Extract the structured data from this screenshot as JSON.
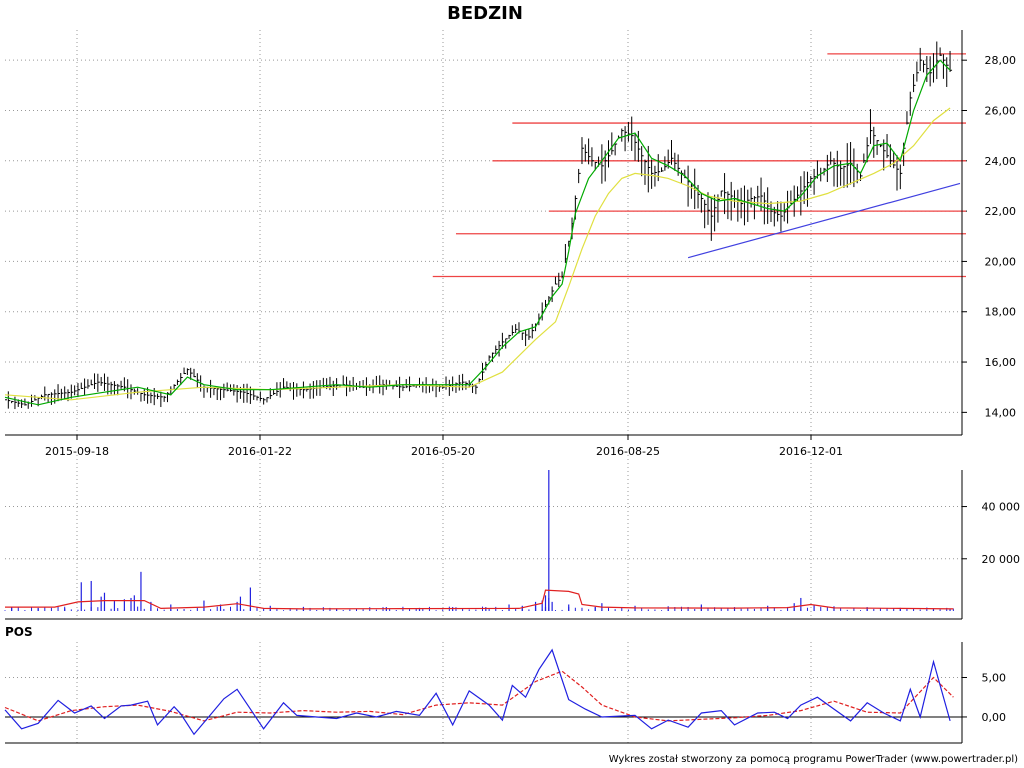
{
  "chart_data": [
    {
      "type": "ohlc",
      "title": "BEDZIN",
      "x_ticks": [
        "2015-09-18",
        "2016-01-22",
        "2016-05-20",
        "2016-08-25",
        "2016-12-01"
      ],
      "y_ticks": [
        "14,00",
        "16,00",
        "18,00",
        "20,00",
        "22,00",
        "24,00",
        "26,00",
        "28,00"
      ],
      "ylim": [
        13.1,
        29.2
      ],
      "grid": true,
      "series": [
        {
          "color": "#00aa00",
          "kind": "short moving average"
        },
        {
          "color": "#e0e040",
          "kind": "long moving average"
        }
      ],
      "price_path": [
        [
          0,
          14.5
        ],
        [
          6,
          14.3
        ],
        [
          12,
          14.7
        ],
        [
          20,
          14.8
        ],
        [
          28,
          15.2
        ],
        [
          36,
          15.0
        ],
        [
          42,
          14.7
        ],
        [
          48,
          14.6
        ],
        [
          55,
          15.7
        ],
        [
          60,
          15.0
        ],
        [
          66,
          14.9
        ],
        [
          72,
          14.8
        ],
        [
          78,
          14.5
        ],
        [
          84,
          15.0
        ],
        [
          90,
          14.9
        ],
        [
          96,
          15.0
        ],
        [
          102,
          15.1
        ],
        [
          108,
          15.0
        ],
        [
          114,
          15.1
        ],
        [
          120,
          15.0
        ],
        [
          126,
          15.1
        ],
        [
          132,
          15.0
        ],
        [
          138,
          15.2
        ],
        [
          142,
          15.0
        ],
        [
          146,
          16.2
        ],
        [
          150,
          16.8
        ],
        [
          154,
          17.3
        ],
        [
          158,
          17.0
        ],
        [
          162,
          18.0
        ],
        [
          166,
          19.1
        ],
        [
          168,
          19.4
        ],
        [
          171,
          21.5
        ],
        [
          174,
          24.5
        ],
        [
          177,
          24.0
        ],
        [
          180,
          23.8
        ],
        [
          183,
          24.4
        ],
        [
          186,
          25.2
        ],
        [
          189,
          25.0
        ],
        [
          192,
          24.2
        ],
        [
          195,
          23.5
        ],
        [
          198,
          23.6
        ],
        [
          201,
          24.1
        ],
        [
          204,
          23.5
        ],
        [
          207,
          23.0
        ],
        [
          210,
          22.5
        ],
        [
          213,
          21.8
        ],
        [
          216,
          22.8
        ],
        [
          219,
          22.6
        ],
        [
          222,
          22.3
        ],
        [
          225,
          22.5
        ],
        [
          228,
          22.6
        ],
        [
          231,
          22.0
        ],
        [
          234,
          21.8
        ],
        [
          237,
          22.3
        ],
        [
          240,
          22.8
        ],
        [
          243,
          23.3
        ],
        [
          246,
          23.5
        ],
        [
          249,
          24.0
        ],
        [
          252,
          23.7
        ],
        [
          255,
          23.9
        ],
        [
          258,
          23.4
        ],
        [
          261,
          25.2
        ],
        [
          264,
          24.6
        ],
        [
          267,
          24.0
        ],
        [
          270,
          23.5
        ],
        [
          273,
          26.5
        ],
        [
          276,
          28.0
        ],
        [
          279,
          27.5
        ],
        [
          282,
          28.2
        ],
        [
          285,
          27.6
        ]
      ],
      "short_ma": [
        [
          0,
          14.6
        ],
        [
          10,
          14.3
        ],
        [
          20,
          14.6
        ],
        [
          30,
          14.8
        ],
        [
          40,
          15.0
        ],
        [
          50,
          14.7
        ],
        [
          55,
          15.4
        ],
        [
          60,
          15.1
        ],
        [
          70,
          14.9
        ],
        [
          80,
          14.9
        ],
        [
          90,
          15.0
        ],
        [
          100,
          15.1
        ],
        [
          110,
          15.0
        ],
        [
          120,
          15.1
        ],
        [
          130,
          15.1
        ],
        [
          140,
          15.1
        ],
        [
          145,
          15.8
        ],
        [
          150,
          16.6
        ],
        [
          155,
          17.2
        ],
        [
          160,
          17.4
        ],
        [
          165,
          18.6
        ],
        [
          168,
          19.1
        ],
        [
          170,
          20.4
        ],
        [
          172,
          21.9
        ],
        [
          176,
          23.3
        ],
        [
          180,
          24.0
        ],
        [
          185,
          24.9
        ],
        [
          190,
          25.1
        ],
        [
          195,
          24.1
        ],
        [
          200,
          23.8
        ],
        [
          205,
          23.4
        ],
        [
          210,
          22.7
        ],
        [
          215,
          22.4
        ],
        [
          220,
          22.5
        ],
        [
          225,
          22.3
        ],
        [
          230,
          22.1
        ],
        [
          235,
          22.0
        ],
        [
          240,
          22.6
        ],
        [
          245,
          23.4
        ],
        [
          250,
          23.8
        ],
        [
          255,
          23.9
        ],
        [
          258,
          23.5
        ],
        [
          262,
          24.6
        ],
        [
          266,
          24.7
        ],
        [
          270,
          24.0
        ],
        [
          274,
          26.0
        ],
        [
          278,
          27.4
        ],
        [
          282,
          28.0
        ],
        [
          285,
          27.6
        ]
      ],
      "long_ma": [
        [
          0,
          14.7
        ],
        [
          20,
          14.5
        ],
        [
          40,
          14.8
        ],
        [
          60,
          15.0
        ],
        [
          80,
          14.9
        ],
        [
          100,
          15.0
        ],
        [
          120,
          15.1
        ],
        [
          140,
          15.0
        ],
        [
          150,
          15.6
        ],
        [
          160,
          16.9
        ],
        [
          166,
          17.6
        ],
        [
          170,
          19.0
        ],
        [
          174,
          20.5
        ],
        [
          178,
          21.8
        ],
        [
          182,
          22.7
        ],
        [
          186,
          23.3
        ],
        [
          190,
          23.5
        ],
        [
          196,
          23.4
        ],
        [
          200,
          23.3
        ],
        [
          206,
          23.0
        ],
        [
          212,
          22.6
        ],
        [
          220,
          22.4
        ],
        [
          230,
          22.3
        ],
        [
          240,
          22.4
        ],
        [
          248,
          22.7
        ],
        [
          255,
          23.1
        ],
        [
          262,
          23.5
        ],
        [
          268,
          23.9
        ],
        [
          274,
          24.6
        ],
        [
          280,
          25.6
        ],
        [
          285,
          26.1
        ]
      ],
      "horizontal_levels": [
        {
          "value": 28.25,
          "from": 248
        },
        {
          "value": 25.5,
          "from": 153
        },
        {
          "value": 24.0,
          "from": 147
        },
        {
          "value": 22.0,
          "from": 164
        },
        {
          "value": 21.1,
          "from": 136
        },
        {
          "value": 19.4,
          "from": 129
        }
      ],
      "trend_line": {
        "from": [
          206,
          20.15
        ],
        "to": [
          288,
          23.1
        ],
        "color": "#4040e0"
      }
    },
    {
      "type": "bar",
      "y_ticks": [
        "20 000",
        "40 000"
      ],
      "ylim": [
        0,
        54000
      ],
      "volume_bars": [
        [
          2,
          1500
        ],
        [
          10,
          1200
        ],
        [
          18,
          1000
        ],
        [
          23,
          11000
        ],
        [
          26,
          11500
        ],
        [
          29,
          5500
        ],
        [
          30,
          7000
        ],
        [
          33,
          4000
        ],
        [
          36,
          4500
        ],
        [
          38,
          5000
        ],
        [
          39,
          6000
        ],
        [
          41,
          15000
        ],
        [
          44,
          3500
        ],
        [
          50,
          2500
        ],
        [
          60,
          4000
        ],
        [
          65,
          2500
        ],
        [
          70,
          3500
        ],
        [
          71,
          5500
        ],
        [
          74,
          9000
        ],
        [
          80,
          2000
        ],
        [
          90,
          1500
        ],
        [
          100,
          1000
        ],
        [
          115,
          1500
        ],
        [
          125,
          1200
        ],
        [
          135,
          1500
        ],
        [
          145,
          1500
        ],
        [
          152,
          2500
        ],
        [
          156,
          2000
        ],
        [
          160,
          3500
        ],
        [
          163,
          1500
        ],
        [
          164,
          5000
        ],
        [
          165,
          3500
        ],
        [
          160,
          2500
        ],
        [
          162,
          4000
        ],
        [
          163,
          6000
        ],
        [
          164,
          54000
        ],
        [
          170,
          2500
        ],
        [
          178,
          1500
        ],
        [
          180,
          3000
        ],
        [
          190,
          2000
        ],
        [
          200,
          1800
        ],
        [
          210,
          2500
        ],
        [
          220,
          1500
        ],
        [
          230,
          2000
        ],
        [
          238,
          3000
        ],
        [
          240,
          5000
        ],
        [
          244,
          2500
        ],
        [
          250,
          1800
        ],
        [
          260,
          1500
        ],
        [
          270,
          1200
        ],
        [
          280,
          1000
        ],
        [
          285,
          800
        ]
      ],
      "volume_ma": [
        [
          0,
          1500
        ],
        [
          15,
          1500
        ],
        [
          22,
          3500
        ],
        [
          30,
          4000
        ],
        [
          42,
          4000
        ],
        [
          47,
          1000
        ],
        [
          60,
          1500
        ],
        [
          70,
          2800
        ],
        [
          78,
          1000
        ],
        [
          90,
          800
        ],
        [
          120,
          900
        ],
        [
          155,
          1000
        ],
        [
          162,
          3000
        ],
        [
          163,
          8000
        ],
        [
          170,
          7500
        ],
        [
          173,
          6500
        ],
        [
          174,
          2500
        ],
        [
          180,
          1500
        ],
        [
          190,
          1200
        ],
        [
          220,
          1100
        ],
        [
          236,
          1300
        ],
        [
          243,
          2500
        ],
        [
          250,
          1200
        ],
        [
          270,
          1000
        ],
        [
          286,
          800
        ]
      ]
    },
    {
      "type": "line",
      "title": "POS",
      "y_ticks": [
        "0,00",
        "5,00"
      ],
      "ylim": [
        -3.3,
        9.5
      ],
      "pos_blue": [
        [
          0,
          0.9
        ],
        [
          5,
          -1.5
        ],
        [
          10,
          -0.8
        ],
        [
          16,
          2.1
        ],
        [
          21,
          0.5
        ],
        [
          26,
          1.4
        ],
        [
          30,
          -0.2
        ],
        [
          35,
          1.4
        ],
        [
          38,
          1.5
        ],
        [
          43,
          2.0
        ],
        [
          46,
          -1.0
        ],
        [
          51,
          1.3
        ],
        [
          53,
          0.4
        ],
        [
          57,
          -2.2
        ],
        [
          62,
          0.3
        ],
        [
          66,
          2.3
        ],
        [
          70,
          3.5
        ],
        [
          74,
          1.0
        ],
        [
          78,
          -1.5
        ],
        [
          84,
          1.8
        ],
        [
          88,
          0.2
        ],
        [
          94,
          0.0
        ],
        [
          100,
          -0.2
        ],
        [
          106,
          0.5
        ],
        [
          112,
          0.0
        ],
        [
          118,
          0.7
        ],
        [
          125,
          0.2
        ],
        [
          130,
          3.0
        ],
        [
          135,
          -1.0
        ],
        [
          140,
          3.3
        ],
        [
          146,
          1.5
        ],
        [
          150,
          -0.4
        ],
        [
          153,
          4.0
        ],
        [
          157,
          2.5
        ],
        [
          161,
          6.0
        ],
        [
          165,
          8.5
        ],
        [
          170,
          2.2
        ],
        [
          175,
          1.0
        ],
        [
          180,
          0.0
        ],
        [
          190,
          0.2
        ],
        [
          195,
          -1.5
        ],
        [
          200,
          -0.4
        ],
        [
          206,
          -1.3
        ],
        [
          210,
          0.5
        ],
        [
          216,
          0.8
        ],
        [
          220,
          -1.0
        ],
        [
          227,
          0.5
        ],
        [
          232,
          0.6
        ],
        [
          236,
          -0.2
        ],
        [
          240,
          1.5
        ],
        [
          245,
          2.5
        ],
        [
          250,
          1.0
        ],
        [
          255,
          -0.5
        ],
        [
          260,
          1.8
        ],
        [
          265,
          0.5
        ],
        [
          270,
          -0.5
        ],
        [
          273,
          3.5
        ],
        [
          276,
          0.0
        ],
        [
          280,
          7.0
        ],
        [
          285,
          -0.5
        ]
      ],
      "pos_red": [
        [
          0,
          1.2
        ],
        [
          10,
          -0.5
        ],
        [
          20,
          0.8
        ],
        [
          30,
          1.3
        ],
        [
          40,
          1.5
        ],
        [
          50,
          0.7
        ],
        [
          60,
          -0.5
        ],
        [
          70,
          0.6
        ],
        [
          80,
          0.5
        ],
        [
          90,
          0.8
        ],
        [
          100,
          0.6
        ],
        [
          110,
          0.7
        ],
        [
          120,
          0.3
        ],
        [
          130,
          1.5
        ],
        [
          140,
          1.8
        ],
        [
          150,
          1.5
        ],
        [
          160,
          4.5
        ],
        [
          168,
          5.8
        ],
        [
          174,
          3.8
        ],
        [
          180,
          1.5
        ],
        [
          190,
          0.0
        ],
        [
          200,
          -0.5
        ],
        [
          210,
          -0.3
        ],
        [
          220,
          -0.1
        ],
        [
          230,
          0.2
        ],
        [
          240,
          0.8
        ],
        [
          250,
          2.0
        ],
        [
          260,
          0.6
        ],
        [
          270,
          0.5
        ],
        [
          280,
          5.0
        ],
        [
          286,
          2.5
        ]
      ]
    }
  ],
  "footer_text": "Wykres został stworzony za pomocą programu PowerTrader (www.powertrader.pl)"
}
